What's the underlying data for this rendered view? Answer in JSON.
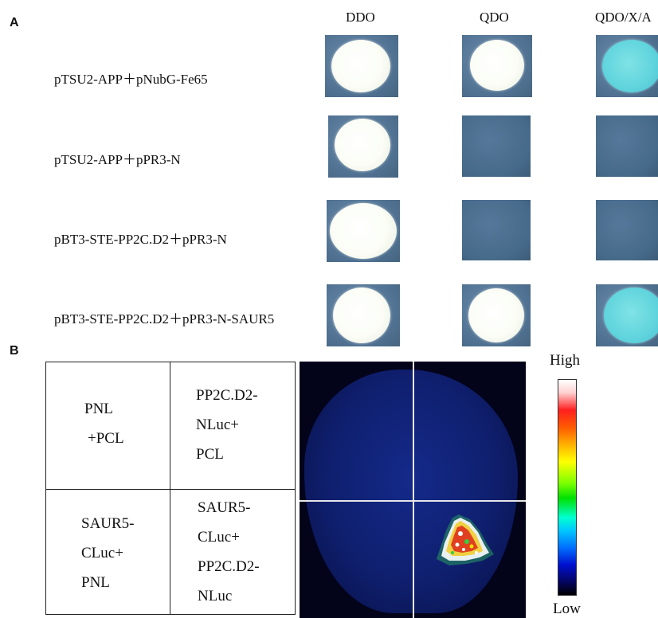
{
  "panel_a": {
    "label": "A",
    "column_headers": [
      "DDO",
      "QDO",
      "QDO/X/A"
    ],
    "row_labels": [
      "pTSU2-APP＋pNubG-Fe65",
      "pTSU2-APP＋pPR3-N",
      "pBT3-STE-PP2C.D2＋pPR3-N",
      "pBT3-STE-PP2C.D2＋pPR3-N-SAUR5"
    ]
  },
  "panel_b": {
    "label": "B",
    "table": {
      "top_left": [
        "PNL",
        "+PCL"
      ],
      "top_right": [
        "PP2C.D2-",
        "NLuc+",
        "PCL"
      ],
      "bottom_left": [
        "SAUR5-",
        "CLuc+",
        "PNL"
      ],
      "bottom_right": [
        "SAUR5-",
        "CLuc+",
        "PP2C.D2-",
        "NLuc"
      ]
    },
    "scale": {
      "high": "High",
      "low": "Low"
    }
  }
}
